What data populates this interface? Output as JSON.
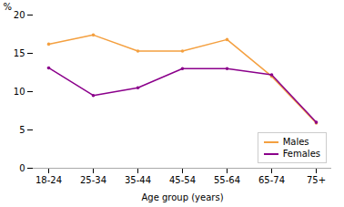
{
  "chart_data": {
    "type": "line",
    "categories": [
      "18-24",
      "25-34",
      "35-44",
      "45-54",
      "55-64",
      "65-74",
      "75+"
    ],
    "series": [
      {
        "name": "Males",
        "color": "#f4a040",
        "values": [
          16.2,
          17.4,
          15.3,
          15.3,
          16.8,
          12.0,
          5.9
        ]
      },
      {
        "name": "Females",
        "color": "#8b008b",
        "values": [
          13.1,
          9.5,
          10.5,
          13.0,
          13.0,
          12.2,
          6.0
        ]
      }
    ],
    "xlabel": "Age group (years)",
    "ylabel": "%",
    "ylim": [
      0,
      20
    ],
    "yticks": [
      0,
      5,
      10,
      15,
      20
    ],
    "grid": false,
    "legend": "lower right",
    "marker": "point"
  }
}
